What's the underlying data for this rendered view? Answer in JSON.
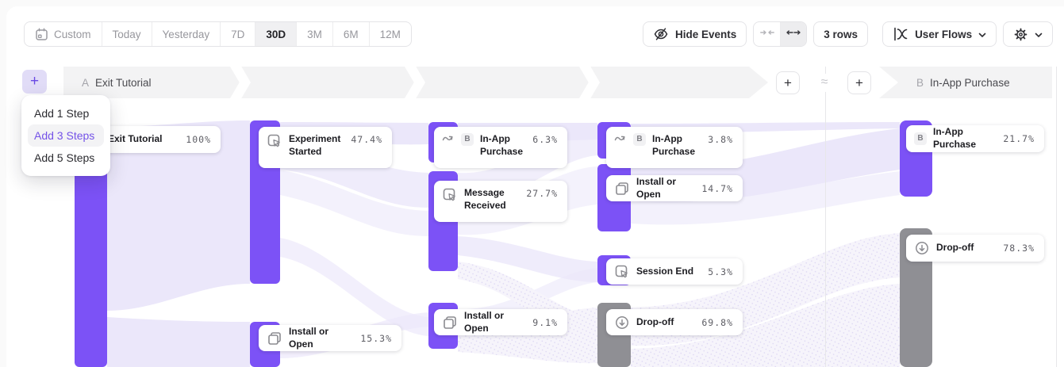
{
  "colors": {
    "accent_purple": "#7c52f6",
    "node_gray": "#8f8f94",
    "flow_lavender": "#ebe7fa"
  },
  "toolbar": {
    "date_ranges": [
      {
        "label": "Custom",
        "icon": "calendar-icon",
        "active": false
      },
      {
        "label": "Today",
        "active": false
      },
      {
        "label": "Yesterday",
        "active": false
      },
      {
        "label": "7D",
        "active": false
      },
      {
        "label": "30D",
        "active": true
      },
      {
        "label": "3M",
        "active": false
      },
      {
        "label": "6M",
        "active": false
      },
      {
        "label": "12M",
        "active": false
      }
    ],
    "hide_events_label": "Hide Events",
    "rows_label": "3 rows",
    "view_selector_label": "User Flows"
  },
  "steps_menu": {
    "add_button_label": "+",
    "items": [
      {
        "label": "Add 1 Step",
        "active": false
      },
      {
        "label": "Add 3 Steps",
        "active": true
      },
      {
        "label": "Add 5 Steps",
        "active": false
      }
    ]
  },
  "flow": {
    "left_step_prefix": "A",
    "left_step_title": "Exit Tutorial",
    "right_step_prefix": "B",
    "right_step_title": "In-App Purchase",
    "approx_symbol": "≈",
    "add_column_left_label": "+",
    "add_column_right_label": "+",
    "nodes": [
      {
        "id": "exit-tutorial",
        "label": "Exit Tutorial",
        "value": "100%",
        "color": "purple"
      },
      {
        "id": "experiment-started",
        "label": "Experiment Started",
        "value": "47.4%",
        "icon": "cursor-click-icon",
        "color": "purple",
        "two_line": true
      },
      {
        "id": "install-or-open-step2",
        "label": "Install or Open",
        "value": "15.3%",
        "icon": "copy-icon",
        "color": "purple"
      },
      {
        "id": "in-app-purchase-step3",
        "label": "In-App Purchase",
        "value": "6.3%",
        "icon": "squiggle-arrow-icon",
        "badge": "B",
        "color": "purple",
        "two_line": true
      },
      {
        "id": "message-received",
        "label": "Message Received",
        "value": "27.7%",
        "icon": "cursor-click-icon",
        "color": "purple",
        "two_line": true
      },
      {
        "id": "install-or-open-step3",
        "label": "Install or Open",
        "value": "9.1%",
        "icon": "copy-icon",
        "color": "purple"
      },
      {
        "id": "in-app-purchase-step4",
        "label": "In-App Purchase",
        "value": "3.8%",
        "icon": "squiggle-arrow-icon",
        "badge": "B",
        "color": "purple",
        "two_line": true
      },
      {
        "id": "install-or-open-step4",
        "label": "Install or Open",
        "value": "14.7%",
        "icon": "copy-icon",
        "color": "purple"
      },
      {
        "id": "session-end",
        "label": "Session End",
        "value": "5.3%",
        "icon": "cursor-click-icon",
        "color": "purple"
      },
      {
        "id": "drop-off-step4",
        "label": "Drop-off",
        "value": "69.8%",
        "icon": "drop-off-icon",
        "color": "gray"
      },
      {
        "id": "in-app-purchase-final",
        "label": "In-App Purchase",
        "value": "21.7%",
        "badge": "B",
        "color": "purple"
      },
      {
        "id": "drop-off-final",
        "label": "Drop-off",
        "value": "78.3%",
        "icon": "drop-off-icon",
        "color": "gray"
      }
    ]
  }
}
